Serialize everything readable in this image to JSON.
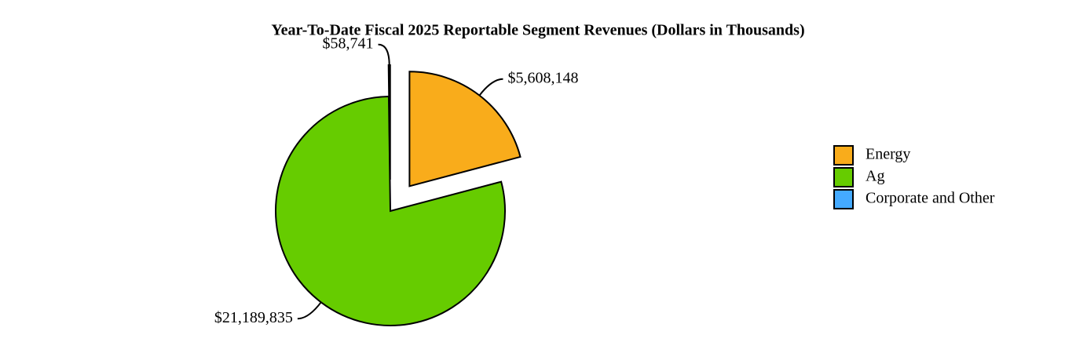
{
  "chart_data": {
    "type": "pie",
    "title": "Year-To-Date Fiscal 2025 Reportable Segment Revenues (Dollars in Thousands)",
    "categories": [
      "Energy",
      "Ag",
      "Corporate and Other"
    ],
    "values": [
      5608148,
      21189835,
      58741
    ],
    "value_labels": [
      "$5,608,148",
      "$21,189,835",
      "$58,741"
    ],
    "colors": [
      "#f9ac1b",
      "#66cc00",
      "#44aaff"
    ],
    "exploded": [
      true,
      false,
      true
    ],
    "legend": "right"
  }
}
